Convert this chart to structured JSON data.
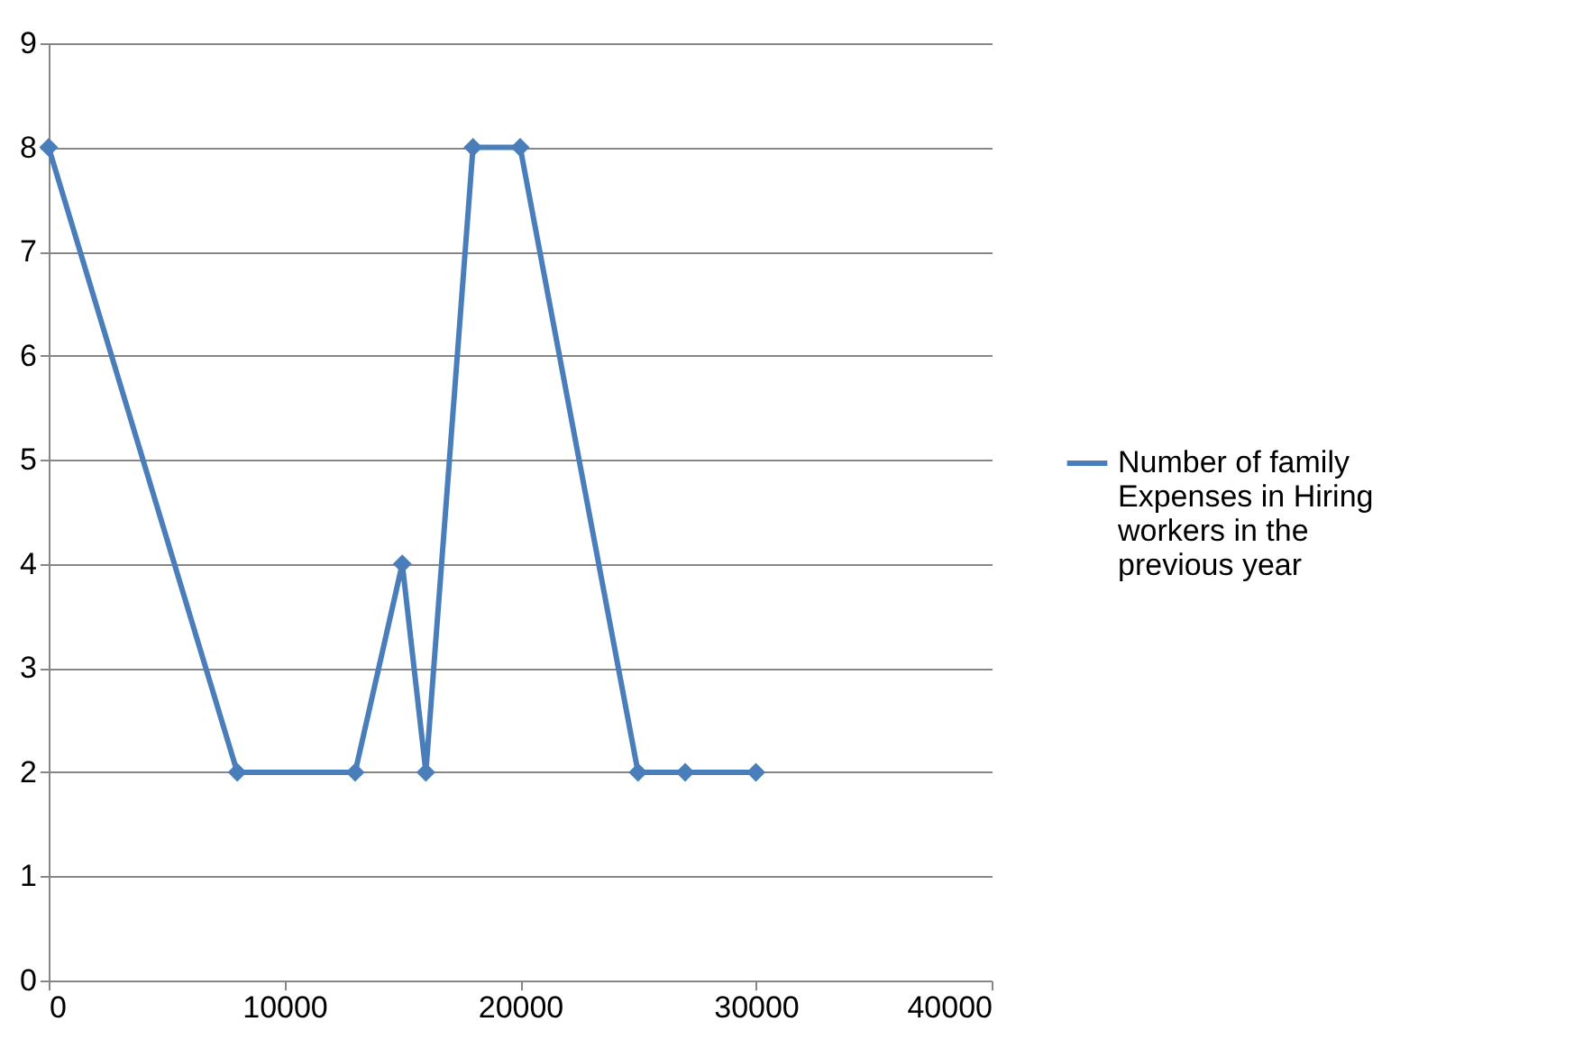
{
  "chart_data": {
    "type": "line",
    "x": [
      0,
      8000,
      13000,
      15000,
      16000,
      18000,
      20000,
      25000,
      27000,
      30000
    ],
    "series": [
      {
        "name": "Number of family Expenses in Hiring workers in the previous year",
        "color": "#4a7ebb",
        "values": [
          8,
          2,
          2,
          4,
          2,
          8,
          8,
          2,
          2,
          2
        ]
      }
    ],
    "xlim": [
      0,
      40000
    ],
    "xticks": [
      0,
      10000,
      20000,
      30000,
      40000
    ],
    "ylim": [
      0,
      9
    ],
    "yticks": [
      0,
      1,
      2,
      3,
      4,
      5,
      6,
      7,
      8,
      9
    ],
    "grid": "y",
    "legend": "right",
    "marker": "diamond",
    "line_style": "solid"
  }
}
